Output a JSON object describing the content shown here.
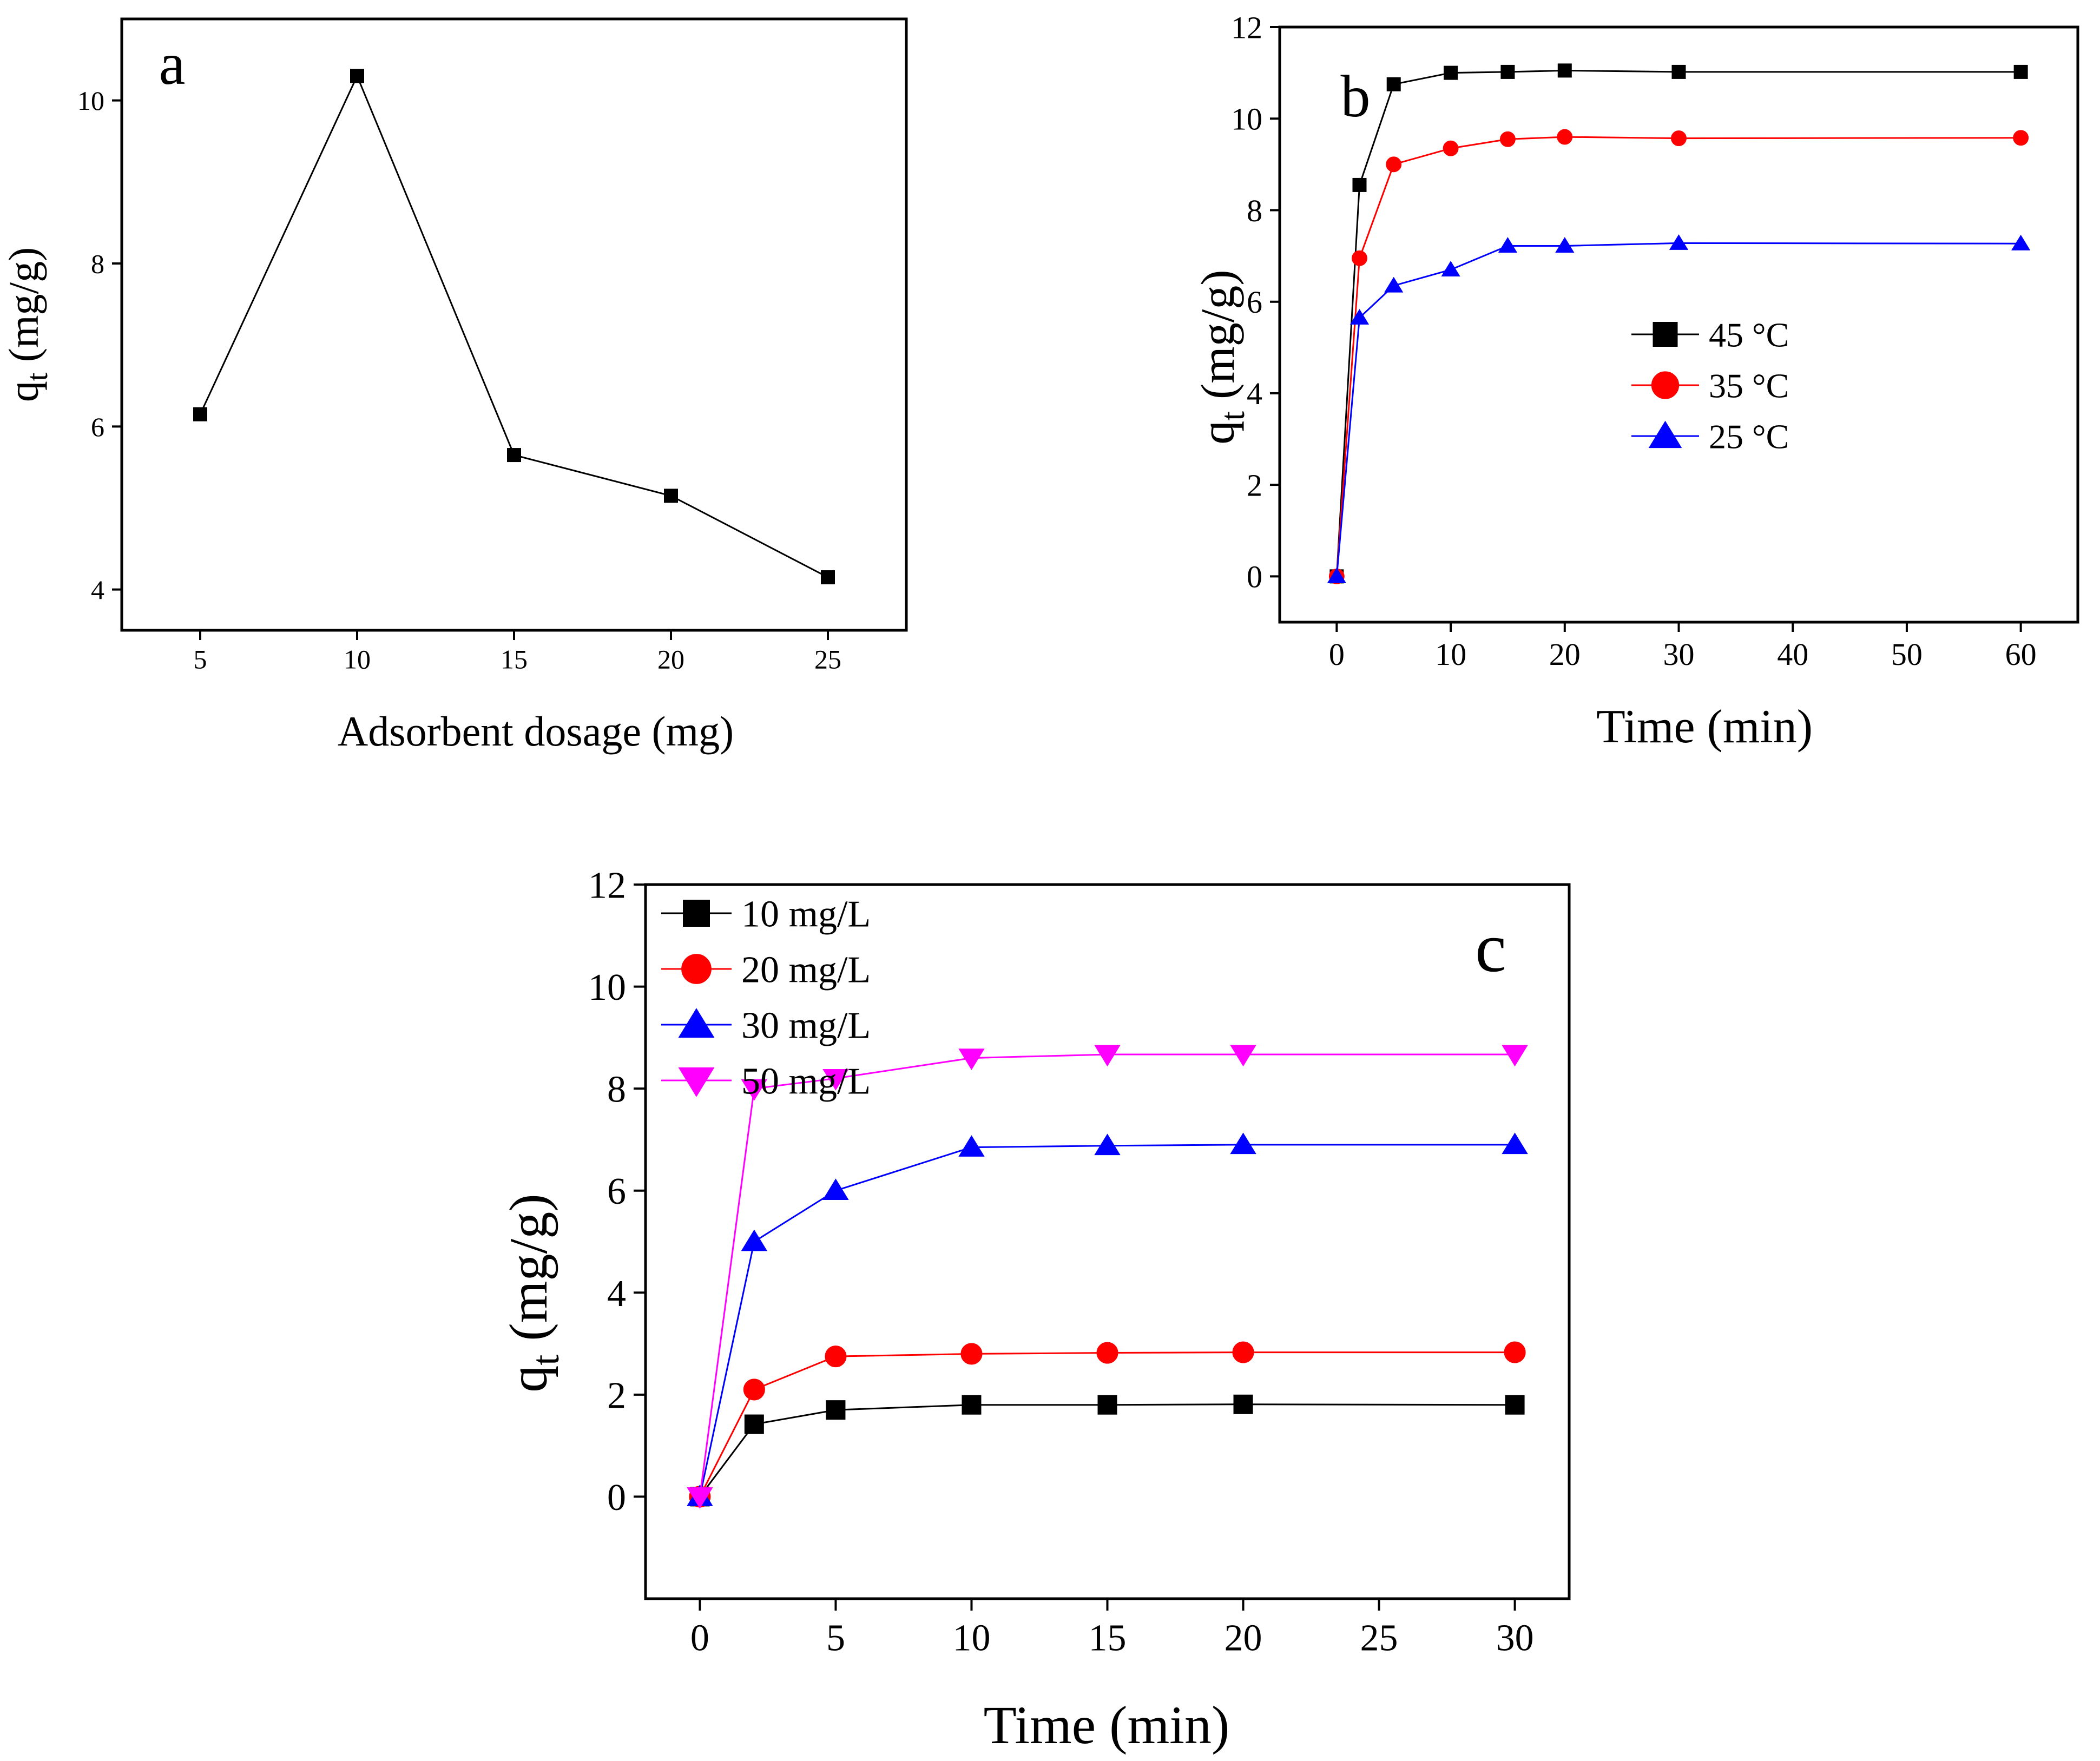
{
  "chart_data": [
    {
      "panel_label": "a",
      "type": "line",
      "title": "",
      "xlabel": "Adsorbent dosage (mg)",
      "ylabel_main": "q",
      "ylabel_sub": "t",
      "ylabel_unit": " (mg/g)",
      "xlim": [
        2.5,
        27.5
      ],
      "ylim": [
        3.5,
        11.0
      ],
      "xticks": [
        5,
        10,
        15,
        20,
        25
      ],
      "yticks": [
        4,
        6,
        8,
        10
      ],
      "grid": false,
      "legend": null,
      "series": [
        {
          "name": "",
          "color": "#000000",
          "marker": "square",
          "x": [
            5,
            10,
            15,
            20,
            25
          ],
          "y": [
            6.15,
            10.3,
            5.65,
            5.15,
            4.15
          ]
        }
      ]
    },
    {
      "panel_label": "b",
      "type": "line",
      "title": "",
      "xlabel": "Time (min)",
      "ylabel_main": "q",
      "ylabel_sub": "t",
      "ylabel_unit": " (mg/g)",
      "xlim": [
        -5,
        65
      ],
      "ylim": [
        -1,
        12
      ],
      "xticks": [
        0,
        10,
        20,
        30,
        40,
        50,
        60
      ],
      "yticks": [
        0,
        2,
        4,
        6,
        8,
        10,
        12
      ],
      "grid": false,
      "legend": "center-left",
      "series": [
        {
          "name": "45 °C",
          "color": "#000000",
          "marker": "square",
          "x": [
            0,
            2,
            5,
            10,
            15,
            20,
            30,
            60
          ],
          "y": [
            0,
            8.55,
            10.75,
            11.0,
            11.02,
            11.05,
            11.02,
            11.02
          ]
        },
        {
          "name": "35 °C",
          "color": "#ff0000",
          "marker": "circle",
          "x": [
            0,
            2,
            5,
            10,
            15,
            20,
            30,
            60
          ],
          "y": [
            0,
            6.95,
            9.0,
            9.35,
            9.55,
            9.6,
            9.57,
            9.58
          ]
        },
        {
          "name": "25 °C",
          "color": "#0000ff",
          "marker": "triangle-up",
          "x": [
            0,
            2,
            5,
            10,
            15,
            20,
            30,
            60
          ],
          "y": [
            0,
            5.65,
            6.35,
            6.7,
            7.22,
            7.22,
            7.28,
            7.27
          ]
        }
      ]
    },
    {
      "panel_label": "c",
      "type": "line",
      "title": "",
      "xlabel": "Time (min)",
      "ylabel_main": "q",
      "ylabel_sub": "t",
      "ylabel_unit": " (mg/g)",
      "xlim": [
        -2,
        32
      ],
      "ylim": [
        -2,
        12
      ],
      "xticks": [
        0,
        5,
        10,
        15,
        20,
        25,
        30
      ],
      "yticks": [
        0,
        2,
        4,
        6,
        8,
        10,
        12
      ],
      "grid": false,
      "legend": "top-left",
      "series": [
        {
          "name": "10 mg/L",
          "color": "#000000",
          "marker": "square",
          "x": [
            0,
            2,
            5,
            10,
            15,
            20,
            30
          ],
          "y": [
            0,
            1.42,
            1.7,
            1.8,
            1.8,
            1.81,
            1.8
          ]
        },
        {
          "name": "20 mg/L",
          "color": "#ff0000",
          "marker": "circle",
          "x": [
            0,
            2,
            5,
            10,
            15,
            20,
            30
          ],
          "y": [
            0,
            2.1,
            2.75,
            2.8,
            2.82,
            2.83,
            2.83
          ]
        },
        {
          "name": "30 mg/L",
          "color": "#0000ff",
          "marker": "triangle-up",
          "x": [
            0,
            2,
            5,
            10,
            15,
            20,
            30
          ],
          "y": [
            0,
            5.0,
            6.0,
            6.85,
            6.88,
            6.9,
            6.9
          ]
        },
        {
          "name": "50 mg/L",
          "color": "#ff00ff",
          "marker": "triangle-down",
          "x": [
            0,
            2,
            5,
            10,
            15,
            20,
            30
          ],
          "y": [
            0,
            8.0,
            8.2,
            8.6,
            8.67,
            8.67,
            8.67
          ]
        }
      ]
    }
  ]
}
